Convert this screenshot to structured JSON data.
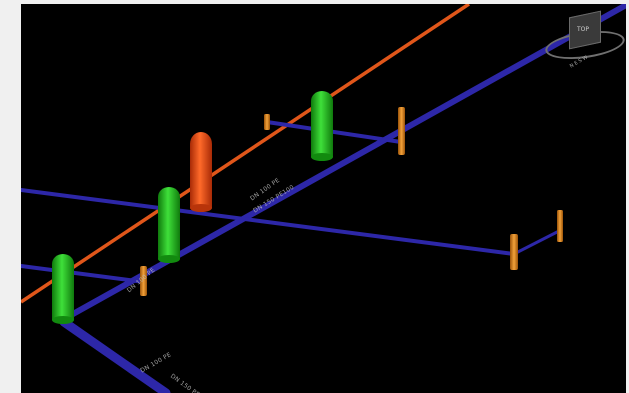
{
  "viewport": {
    "background": "#000000",
    "pipe_colors": {
      "gas_main": "#e85a1c",
      "water": "#2d27a8",
      "valve_green": "#22c21c",
      "hydrant_red": "#f04a12",
      "fitting_orange": "#e8861a"
    }
  },
  "pipe_labels": [
    "DN 150 PE100",
    "DN 100 PE",
    "DN 100 PE",
    "DN 150 PE100",
    "DN 100 PE"
  ],
  "view_cube": {
    "label": "TOP",
    "compass_label": "N E S W"
  }
}
